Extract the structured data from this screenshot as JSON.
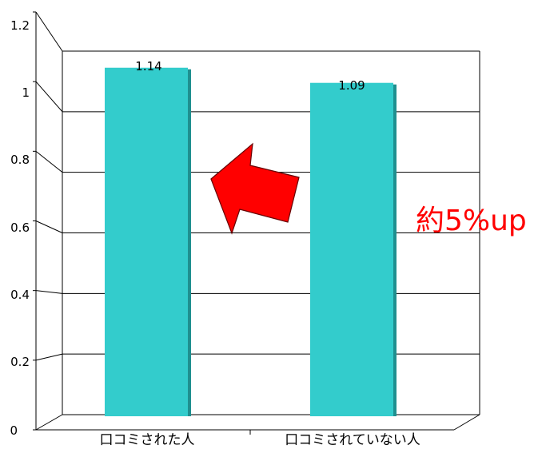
{
  "chart_data": {
    "type": "bar",
    "categories": [
      "口コミされた人",
      "口コミされていない人"
    ],
    "values": [
      1.14,
      1.09
    ],
    "value_labels": [
      "1.14",
      "1.09"
    ],
    "title": "",
    "xlabel": "",
    "ylabel": "",
    "ylim": [
      0,
      1.2
    ],
    "yticks": [
      "0",
      "0.2",
      "0.4",
      "0.6",
      "0.8",
      "1",
      "1.2"
    ],
    "grid": true,
    "legend": "none",
    "bar_color": "#33cccc",
    "bar_side_color": "#1f8f8f",
    "annotation": {
      "text": "約5%up",
      "color": "#ff0000"
    },
    "arrow_color": "#ff0000"
  }
}
